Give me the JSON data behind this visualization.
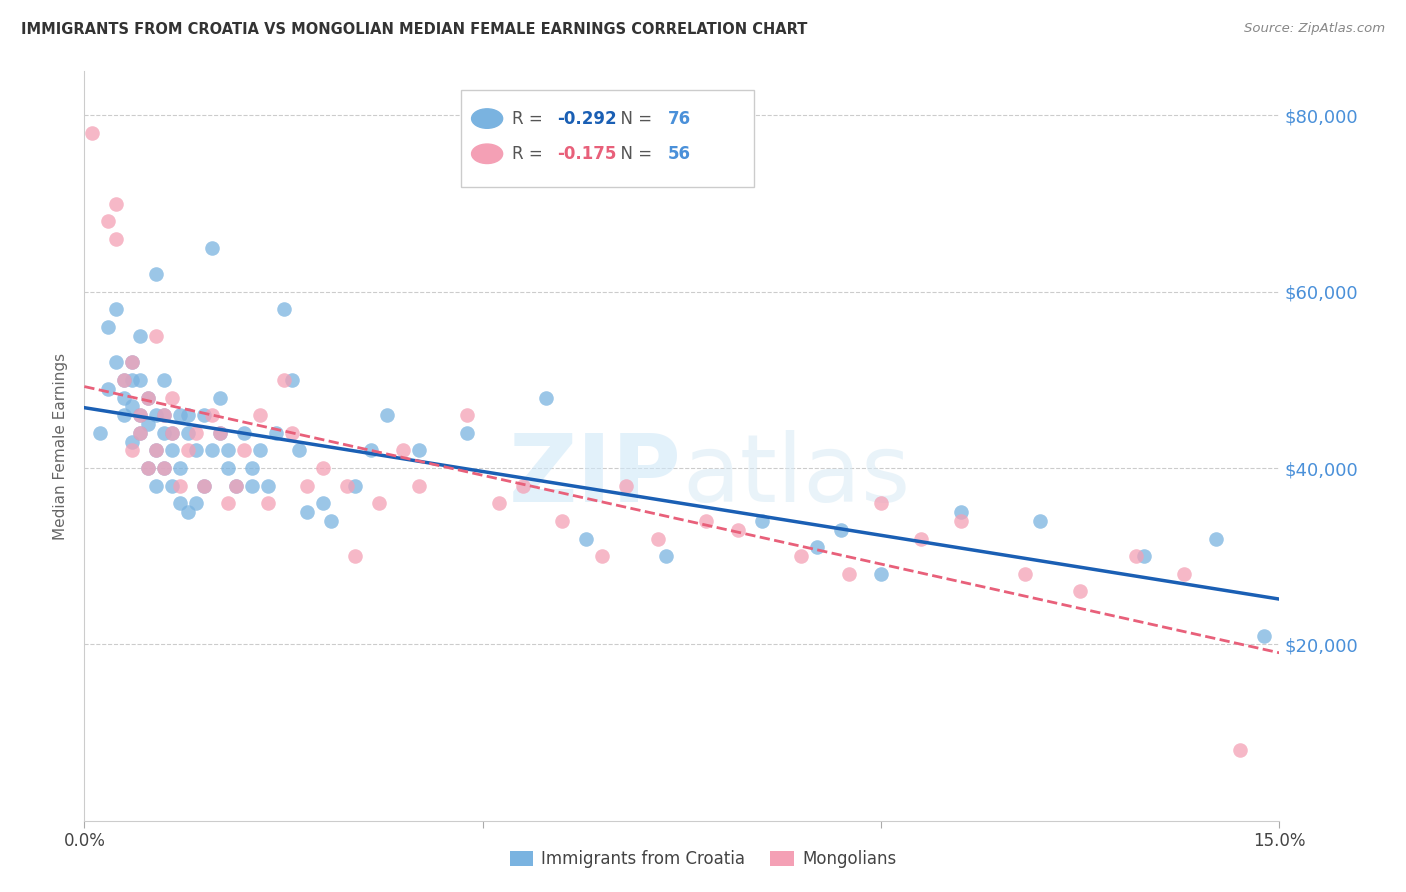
{
  "title": "IMMIGRANTS FROM CROATIA VS MONGOLIAN MEDIAN FEMALE EARNINGS CORRELATION CHART",
  "source": "Source: ZipAtlas.com",
  "ylabel": "Median Female Earnings",
  "xlim": [
    0.0,
    0.15
  ],
  "ylim": [
    0,
    85000
  ],
  "yticks": [
    20000,
    40000,
    60000,
    80000
  ],
  "ytick_labels": [
    "$20,000",
    "$40,000",
    "$60,000",
    "$80,000"
  ],
  "xticks": [
    0.0,
    0.05,
    0.1,
    0.15
  ],
  "legend_blue_r": "-0.292",
  "legend_blue_n": "76",
  "legend_pink_r": "-0.175",
  "legend_pink_n": "56",
  "blue_color": "#7ab3e0",
  "pink_color": "#f4a0b5",
  "blue_line_color": "#1a5fb4",
  "pink_line_color": "#e8607a",
  "watermark_zip": "ZIP",
  "watermark_atlas": "atlas",
  "axis_label_color": "#4a90d9",
  "title_color": "#333333",
  "grid_color": "#cccccc",
  "blue_scatter_x": [
    0.002,
    0.003,
    0.003,
    0.004,
    0.004,
    0.005,
    0.005,
    0.005,
    0.006,
    0.006,
    0.006,
    0.006,
    0.007,
    0.007,
    0.007,
    0.007,
    0.008,
    0.008,
    0.008,
    0.009,
    0.009,
    0.009,
    0.009,
    0.01,
    0.01,
    0.01,
    0.01,
    0.011,
    0.011,
    0.011,
    0.012,
    0.012,
    0.012,
    0.013,
    0.013,
    0.013,
    0.014,
    0.014,
    0.015,
    0.015,
    0.016,
    0.016,
    0.017,
    0.017,
    0.018,
    0.018,
    0.019,
    0.02,
    0.021,
    0.021,
    0.022,
    0.023,
    0.024,
    0.025,
    0.026,
    0.027,
    0.028,
    0.03,
    0.031,
    0.034,
    0.036,
    0.038,
    0.042,
    0.048,
    0.058,
    0.063,
    0.073,
    0.085,
    0.092,
    0.095,
    0.1,
    0.11,
    0.12,
    0.133,
    0.142,
    0.148
  ],
  "blue_scatter_y": [
    44000,
    56000,
    49000,
    52000,
    58000,
    46000,
    48000,
    50000,
    43000,
    47000,
    50000,
    52000,
    44000,
    46000,
    50000,
    55000,
    40000,
    45000,
    48000,
    38000,
    42000,
    46000,
    62000,
    40000,
    44000,
    46000,
    50000,
    38000,
    42000,
    44000,
    36000,
    40000,
    46000,
    35000,
    44000,
    46000,
    36000,
    42000,
    38000,
    46000,
    42000,
    65000,
    44000,
    48000,
    40000,
    42000,
    38000,
    44000,
    38000,
    40000,
    42000,
    38000,
    44000,
    58000,
    50000,
    42000,
    35000,
    36000,
    34000,
    38000,
    42000,
    46000,
    42000,
    44000,
    48000,
    32000,
    30000,
    34000,
    31000,
    33000,
    28000,
    35000,
    34000,
    30000,
    32000,
    21000
  ],
  "pink_scatter_x": [
    0.001,
    0.003,
    0.004,
    0.004,
    0.005,
    0.006,
    0.006,
    0.007,
    0.007,
    0.008,
    0.008,
    0.009,
    0.009,
    0.01,
    0.01,
    0.011,
    0.011,
    0.012,
    0.013,
    0.014,
    0.015,
    0.016,
    0.017,
    0.018,
    0.019,
    0.02,
    0.022,
    0.023,
    0.025,
    0.026,
    0.028,
    0.03,
    0.033,
    0.034,
    0.037,
    0.04,
    0.042,
    0.048,
    0.052,
    0.055,
    0.06,
    0.065,
    0.068,
    0.072,
    0.078,
    0.082,
    0.09,
    0.096,
    0.1,
    0.105,
    0.11,
    0.118,
    0.125,
    0.132,
    0.138,
    0.145
  ],
  "pink_scatter_y": [
    78000,
    68000,
    70000,
    66000,
    50000,
    42000,
    52000,
    44000,
    46000,
    40000,
    48000,
    42000,
    55000,
    40000,
    46000,
    48000,
    44000,
    38000,
    42000,
    44000,
    38000,
    46000,
    44000,
    36000,
    38000,
    42000,
    46000,
    36000,
    50000,
    44000,
    38000,
    40000,
    38000,
    30000,
    36000,
    42000,
    38000,
    46000,
    36000,
    38000,
    34000,
    30000,
    38000,
    32000,
    34000,
    33000,
    30000,
    28000,
    36000,
    32000,
    34000,
    28000,
    26000,
    30000,
    28000,
    8000
  ]
}
